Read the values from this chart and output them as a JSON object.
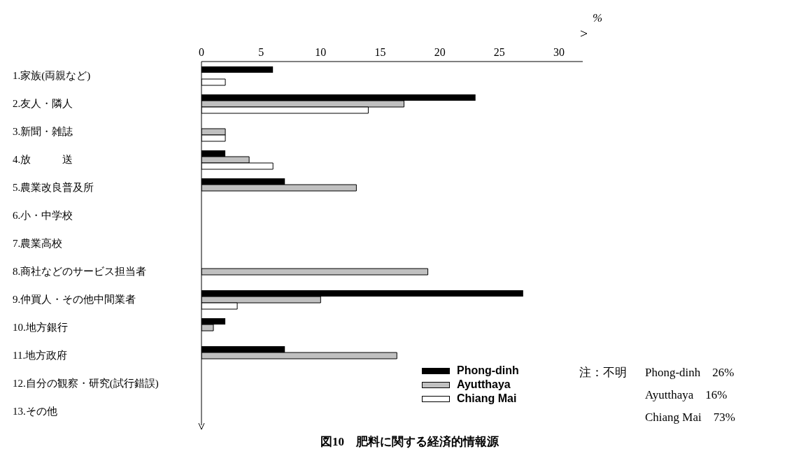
{
  "chart_data": {
    "type": "bar",
    "orientation": "horizontal",
    "title": "図10　肥料に関する経済的情報源",
    "xlabel": "%",
    "categories": [
      "1.家族(両親など)",
      "2.友人・隣人",
      "3.新聞・雑誌",
      "4.放　　　送",
      "5.農業改良普及所",
      "6.小・中学校",
      "7.農業高校",
      "8.商社などのサービス担当者",
      "9.仲買人・その他中間業者",
      "10.地方銀行",
      "11.地方政府",
      "12.自分の観察・研究(試行錯誤)",
      "13.その他"
    ],
    "series": [
      {
        "name": "Phong-dinh",
        "color": "#000000",
        "values": [
          6,
          23,
          0,
          2,
          7,
          0,
          0,
          0,
          27,
          2,
          7,
          0,
          0
        ]
      },
      {
        "name": "Ayutthaya",
        "color": "#c0c0c0",
        "values": [
          0,
          17,
          2,
          4,
          13,
          0,
          0,
          19,
          10,
          1,
          16.4,
          0,
          0
        ]
      },
      {
        "name": "Chiang Mai",
        "color": "#ffffff",
        "values": [
          2,
          14,
          2,
          6,
          0,
          0,
          0,
          0,
          3,
          0,
          0,
          0,
          0
        ]
      }
    ],
    "xlim": [
      0,
      32
    ],
    "xticks": [
      0,
      5,
      10,
      15,
      20,
      25,
      30
    ],
    "grid": false,
    "legend": "bottom right",
    "annotations": [
      "注：不明",
      "Phong-dinh　26%",
      "Ayutthaya　16%",
      "Chiang Mai　73%"
    ]
  }
}
